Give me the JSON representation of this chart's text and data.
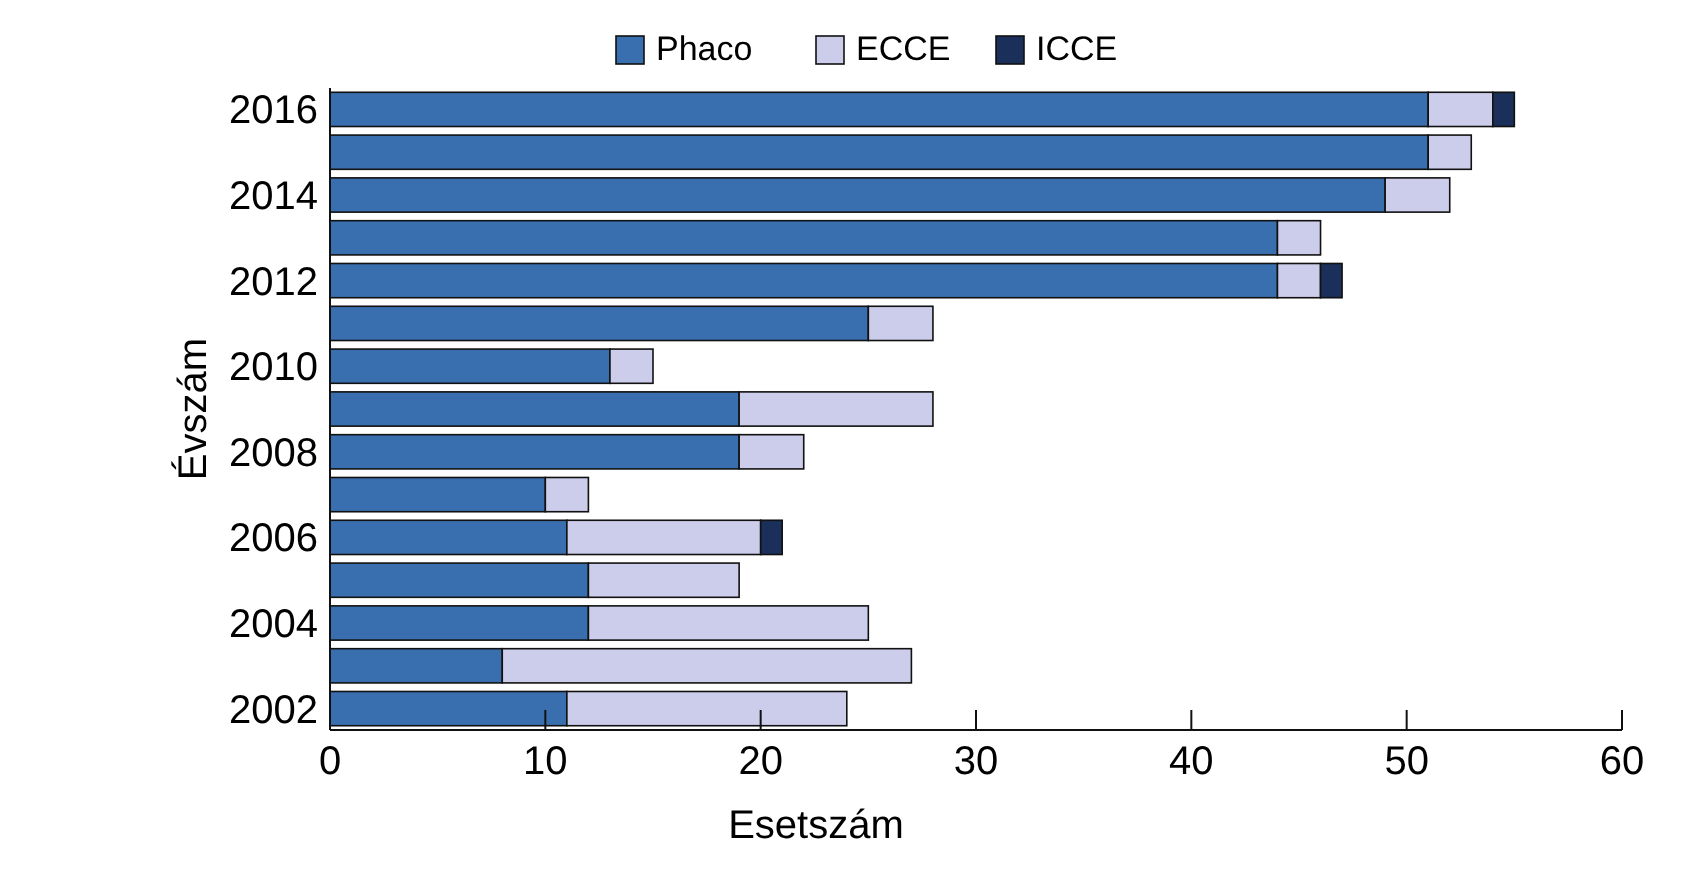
{
  "chart_data": {
    "type": "bar",
    "orientation": "horizontal",
    "stacked": true,
    "xlabel": "Esetszám",
    "ylabel": "Évszám",
    "categories": [
      "2016",
      null,
      "2014",
      null,
      "2012",
      null,
      "2010",
      null,
      "2008",
      null,
      "2006",
      null,
      "2004",
      null,
      "2002"
    ],
    "series": [
      {
        "name": "Phaco",
        "color": "#3a6faf",
        "values": [
          51,
          51,
          49,
          44,
          44,
          25,
          13,
          19,
          19,
          10,
          11,
          12,
          12,
          8,
          11
        ]
      },
      {
        "name": "ECCE",
        "color": "#cccceb",
        "values": [
          3,
          2,
          3,
          2,
          2,
          3,
          2,
          9,
          3,
          2,
          9,
          7,
          13,
          19,
          13
        ]
      },
      {
        "name": "ICCE",
        "color": "#1a2f5a",
        "values": [
          1,
          0,
          0,
          0,
          1,
          0,
          0,
          0,
          0,
          0,
          1,
          0,
          0,
          0,
          0
        ]
      }
    ],
    "xlim": [
      0,
      60
    ],
    "xticks": [
      0,
      10,
      20,
      30,
      40,
      50,
      60
    ],
    "legend": "top",
    "grid": false
  }
}
